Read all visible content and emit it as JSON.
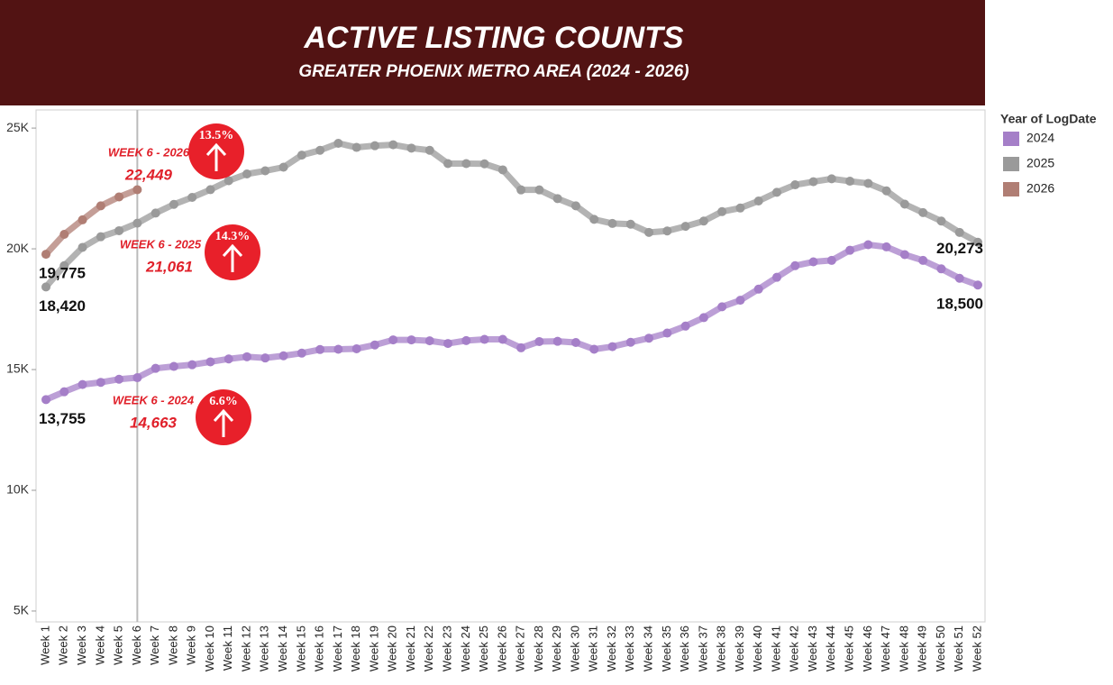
{
  "chart_data": {
    "type": "line",
    "title": "ACTIVE LISTING COUNTS",
    "subtitle": "GREATER PHOENIX METRO AREA (2024 - 2026)",
    "legend_title": "Year of LogDate",
    "legend": "right",
    "categories": [
      "Week 1",
      "Week 2",
      "Week 3",
      "Week 4",
      "Week 5",
      "Week 6",
      "Week 7",
      "Week 8",
      "Week 9",
      "Week 10",
      "Week 11",
      "Week 12",
      "Week 13",
      "Week 14",
      "Week 15",
      "Week 16",
      "Week 17",
      "Week 18",
      "Week 19",
      "Week 20",
      "Week 21",
      "Week 22",
      "Week 23",
      "Week 24",
      "Week 25",
      "Week 26",
      "Week 27",
      "Week 28",
      "Week 29",
      "Week 30",
      "Week 31",
      "Week 32",
      "Week 33",
      "Week 34",
      "Week 35",
      "Week 36",
      "Week 37",
      "Week 38",
      "Week 39",
      "Week 40",
      "Week 41",
      "Week 42",
      "Week 43",
      "Week 44",
      "Week 45",
      "Week 46",
      "Week 47",
      "Week 48",
      "Week 49",
      "Week 50",
      "Week 51",
      "Week 52"
    ],
    "ylim": [
      4550,
      25750
    ],
    "yticks": [
      {
        "value": 5000,
        "label": "5K"
      },
      {
        "value": 10000,
        "label": "10K"
      },
      {
        "value": 15000,
        "label": "15K"
      },
      {
        "value": 20000,
        "label": "20K"
      },
      {
        "value": 25000,
        "label": "25K"
      }
    ],
    "series": [
      {
        "name": "2024",
        "color": "#a57fc8",
        "values": [
          13755,
          14080,
          14380,
          14470,
          14600,
          14663,
          15050,
          15130,
          15200,
          15320,
          15440,
          15530,
          15480,
          15570,
          15680,
          15830,
          15840,
          15860,
          16020,
          16230,
          16230,
          16190,
          16080,
          16200,
          16250,
          16250,
          15900,
          16160,
          16170,
          16120,
          15840,
          15950,
          16130,
          16300,
          16510,
          16800,
          17150,
          17600,
          17870,
          18330,
          18820,
          19300,
          19460,
          19520,
          19940,
          20170,
          20080,
          19760,
          19520,
          19170,
          18780,
          18500
        ],
        "value_labels": [
          "13,755",
          null,
          null,
          null,
          null,
          "14,663",
          null,
          null,
          null,
          null,
          null,
          null,
          null,
          null,
          null,
          null,
          null,
          null,
          null,
          null,
          null,
          null,
          null,
          null,
          null,
          null,
          null,
          null,
          null,
          null,
          null,
          null,
          null,
          null,
          null,
          null,
          null,
          null,
          null,
          null,
          null,
          null,
          null,
          null,
          null,
          null,
          null,
          null,
          null,
          null,
          null,
          "18,500"
        ]
      },
      {
        "name": "2025",
        "color": "#9a9a9a",
        "values": [
          18420,
          19300,
          20060,
          20500,
          20750,
          21061,
          21480,
          21840,
          22130,
          22450,
          22820,
          23100,
          23230,
          23380,
          23880,
          24080,
          24370,
          24200,
          24270,
          24310,
          24170,
          24080,
          23530,
          23530,
          23520,
          23270,
          22440,
          22440,
          22080,
          21780,
          21220,
          21050,
          21020,
          20680,
          20740,
          20930,
          21150,
          21540,
          21690,
          21980,
          22340,
          22650,
          22780,
          22900,
          22800,
          22710,
          22400,
          21850,
          21500,
          21150,
          20680,
          20273
        ],
        "value_labels": [
          "18,420",
          null,
          null,
          null,
          null,
          "21,061",
          null,
          null,
          null,
          null,
          null,
          null,
          null,
          null,
          null,
          null,
          null,
          null,
          null,
          null,
          null,
          null,
          null,
          null,
          null,
          null,
          null,
          null,
          null,
          null,
          null,
          null,
          null,
          null,
          null,
          null,
          null,
          null,
          null,
          null,
          null,
          null,
          null,
          null,
          null,
          null,
          null,
          null,
          null,
          null,
          null,
          "20,273"
        ]
      },
      {
        "name": "2026",
        "color": "#b07e74",
        "values": [
          19775,
          20600,
          21200,
          21780,
          22150,
          22449,
          null,
          null,
          null,
          null,
          null,
          null,
          null,
          null,
          null,
          null,
          null,
          null,
          null,
          null,
          null,
          null,
          null,
          null,
          null,
          null,
          null,
          null,
          null,
          null,
          null,
          null,
          null,
          null,
          null,
          null,
          null,
          null,
          null,
          null,
          null,
          null,
          null,
          null,
          null,
          null,
          null,
          null,
          null,
          null,
          null,
          null
        ],
        "value_labels": [
          "19,775",
          null,
          null,
          null,
          null,
          "22,449",
          null,
          null,
          null,
          null,
          null,
          null,
          null,
          null,
          null,
          null,
          null,
          null,
          null,
          null,
          null,
          null,
          null,
          null,
          null,
          null,
          null,
          null,
          null,
          null,
          null,
          null,
          null,
          null,
          null,
          null,
          null,
          null,
          null,
          null,
          null,
          null,
          null,
          null,
          null,
          null,
          null,
          null,
          null,
          null,
          null,
          null
        ]
      }
    ],
    "annotations": [
      {
        "label": "WEEK 6 - 2024",
        "change": "6.6%"
      },
      {
        "label": "WEEK 6 - 2025",
        "change": "14.3%"
      },
      {
        "label": "WEEK 6 - 2026",
        "change": "13.5%"
      }
    ]
  }
}
